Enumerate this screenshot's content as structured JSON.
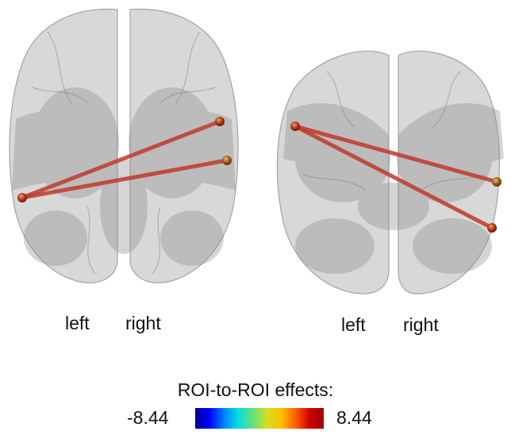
{
  "views": [
    {
      "id": "axial",
      "left_label": "left",
      "right_label": "right",
      "connections": [
        {
          "from": "left-lateral-node",
          "to": "right-upper-node"
        },
        {
          "from": "left-lateral-node",
          "to": "right-lateral-node"
        }
      ]
    },
    {
      "id": "coronal",
      "left_label": "left",
      "right_label": "right",
      "connections": [
        {
          "from": "left-upper-node",
          "to": "right-middle-node"
        },
        {
          "from": "left-upper-node",
          "to": "right-lower-node"
        }
      ]
    }
  ],
  "colorbar": {
    "title": "ROI-to-ROI effects:",
    "min_label": "-8.44",
    "max_label": "8.44",
    "min": -8.44,
    "max": 8.44,
    "colors": [
      "#00008f",
      "#0000ff",
      "#0080ff",
      "#00e0e0",
      "#60e080",
      "#d0e020",
      "#ffc000",
      "#ff6000",
      "#d00000",
      "#a00000"
    ]
  },
  "style": {
    "connection_color": "#c0392b",
    "node_color": "#b33a1a",
    "brain_fill": "#c8c8c8",
    "brain_shade": "#7a7a7a"
  }
}
